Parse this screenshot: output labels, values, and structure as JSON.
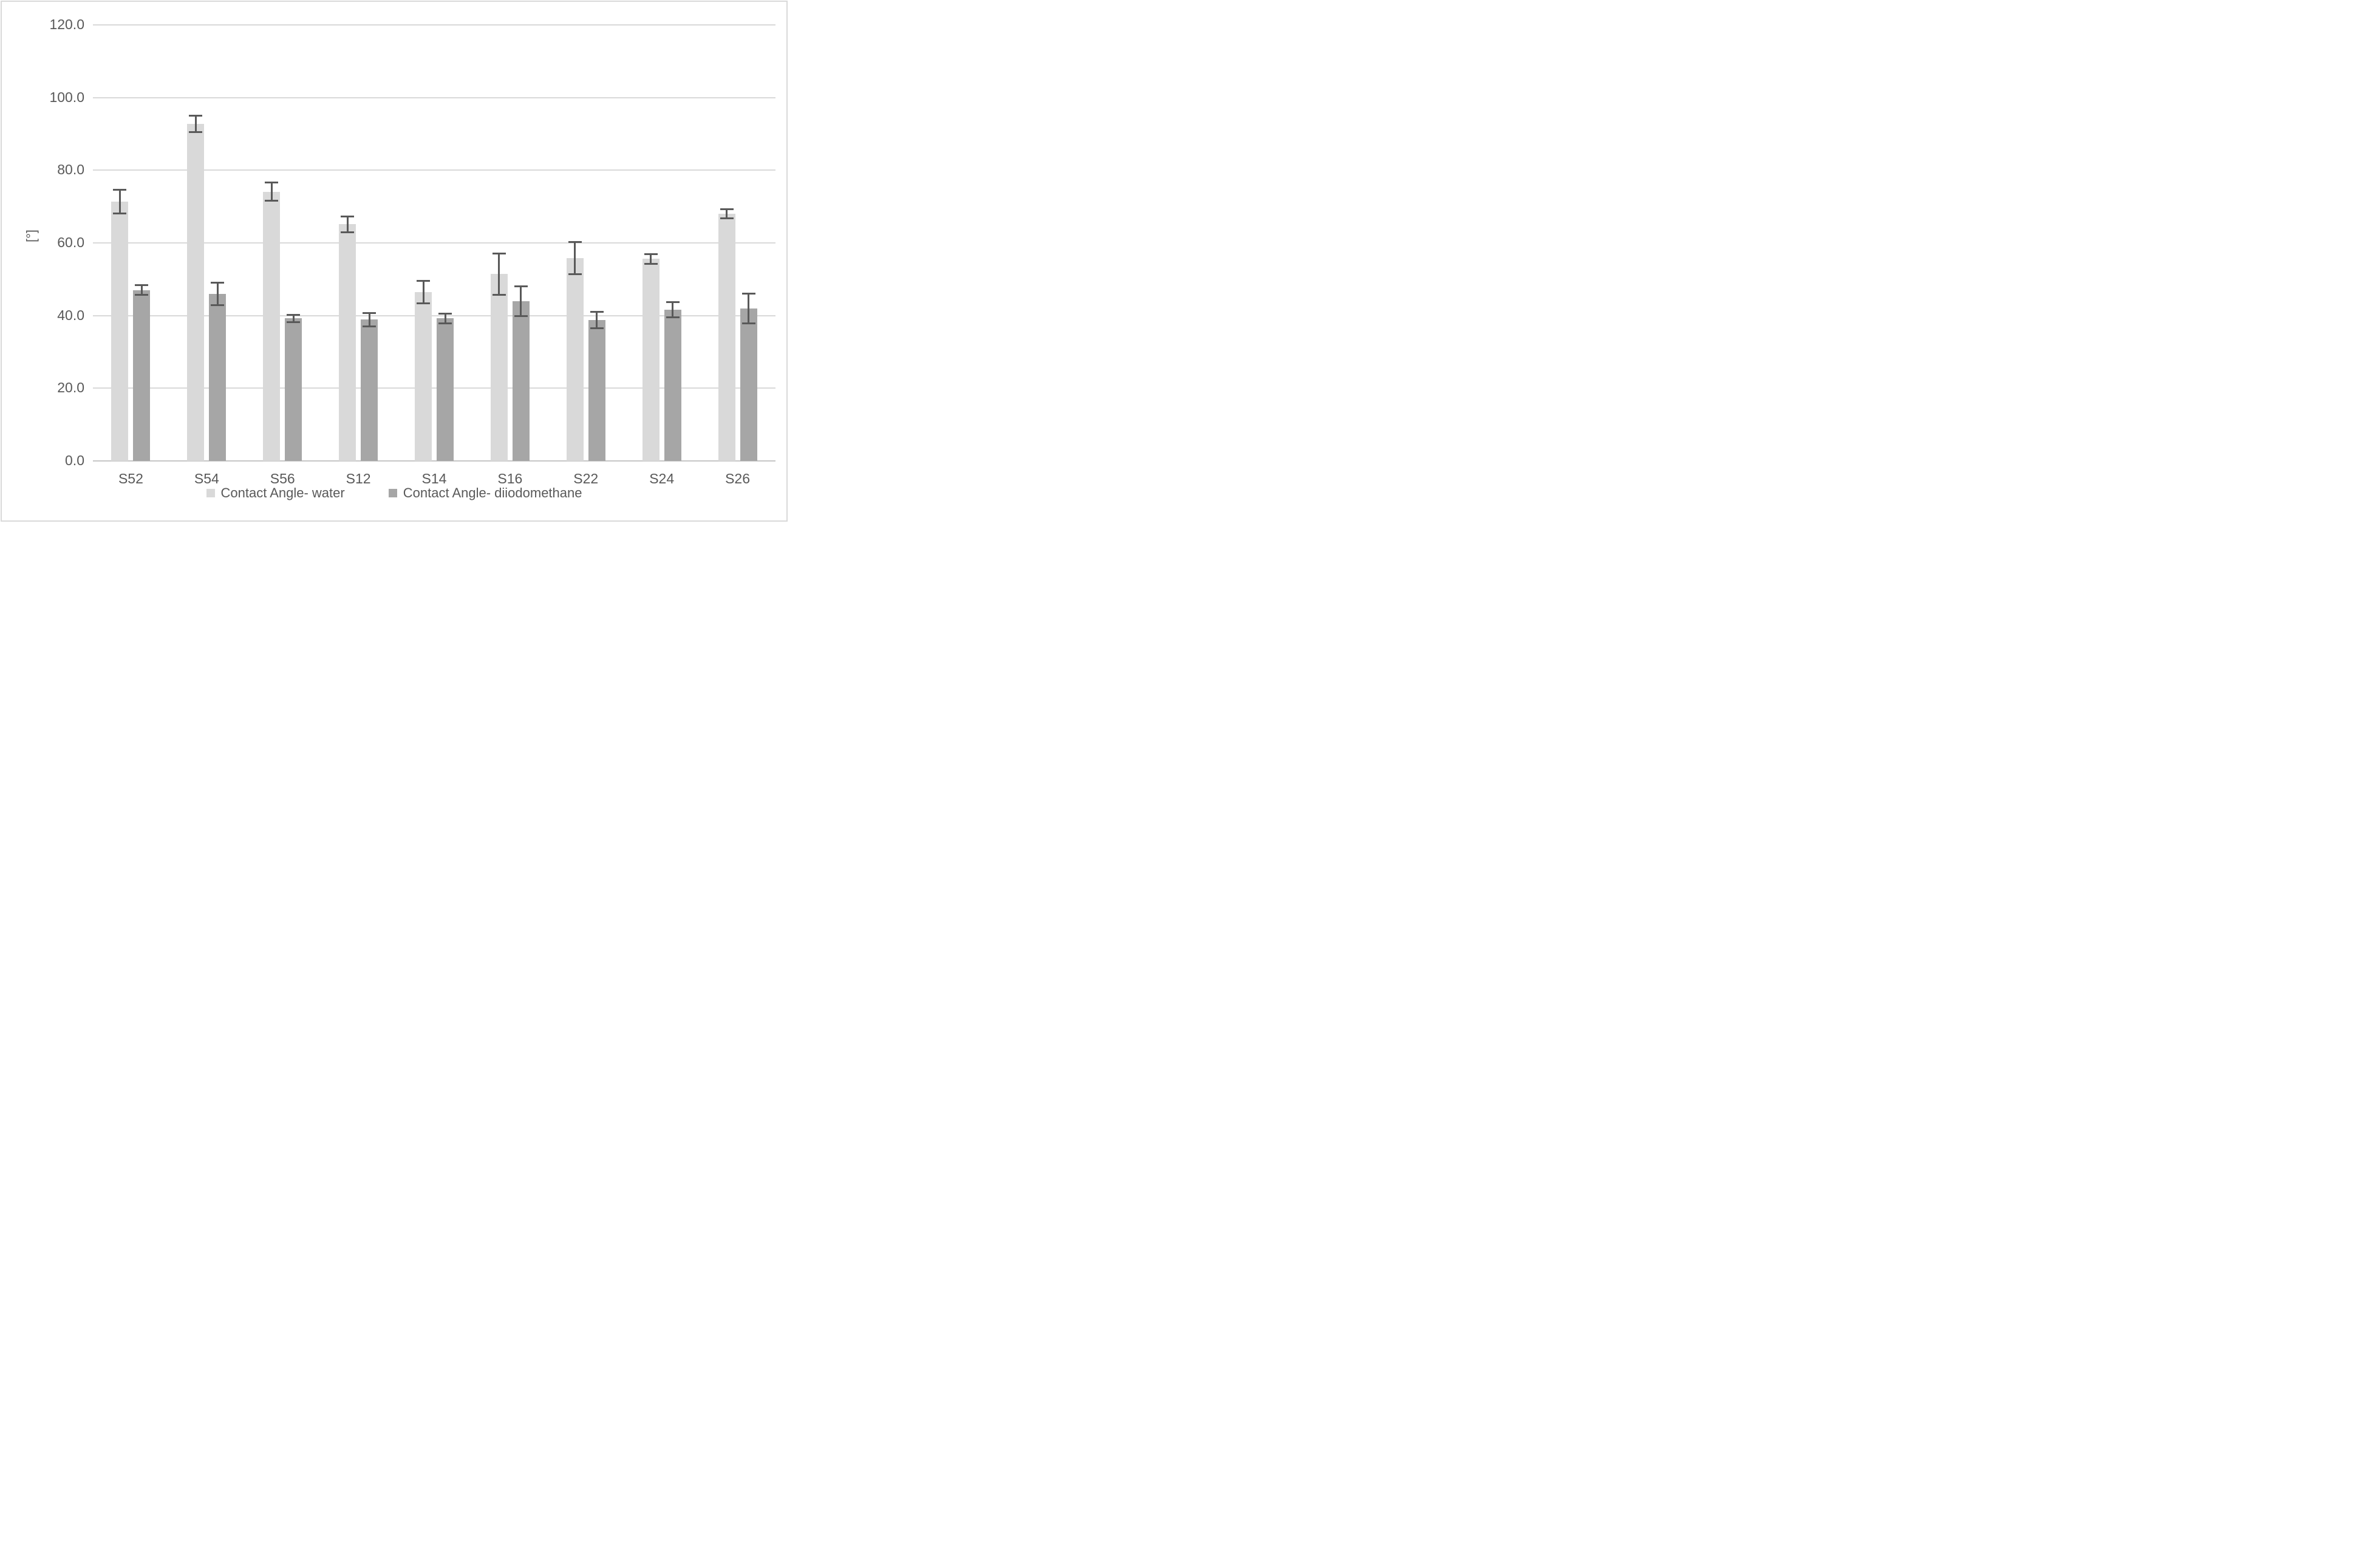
{
  "chart_data": {
    "type": "bar",
    "title": "",
    "xlabel": "",
    "ylabel": "[°]",
    "ylim": [
      0,
      120
    ],
    "ytick_step": 20,
    "ytick_labels": [
      "0.0",
      "20.0",
      "40.0",
      "60.0",
      "80.0",
      "100.0",
      "120.0"
    ],
    "grid": true,
    "legend_position": "bottom",
    "categories": [
      "S52",
      "S54",
      "S56",
      "S12",
      "S14",
      "S16",
      "S22",
      "S24",
      "S26"
    ],
    "series": [
      {
        "name": "Contact Angle- water",
        "color": "#d9d9d9",
        "values": [
          71.4,
          92.8,
          74.1,
          65.1,
          46.5,
          51.4,
          55.8,
          55.6,
          68.0
        ],
        "errors": [
          3.3,
          2.3,
          2.6,
          2.3,
          3.2,
          5.7,
          4.5,
          1.4,
          1.3
        ]
      },
      {
        "name": "Contact Angle- diiodomethane",
        "color": "#a6a6a6",
        "values": [
          47.0,
          46.0,
          39.2,
          38.9,
          39.2,
          43.9,
          38.8,
          41.6,
          42.0
        ],
        "errors": [
          1.4,
          3.2,
          1.1,
          1.9,
          1.4,
          4.2,
          2.3,
          2.2,
          4.2
        ]
      }
    ],
    "error_bar_color": "#595959",
    "gridline_color": "#d9d9d9",
    "axis_line_color": "#c6c6c6",
    "text_color": "#595959",
    "background_color": "#ffffff",
    "border_color": "#d9d9d9"
  }
}
